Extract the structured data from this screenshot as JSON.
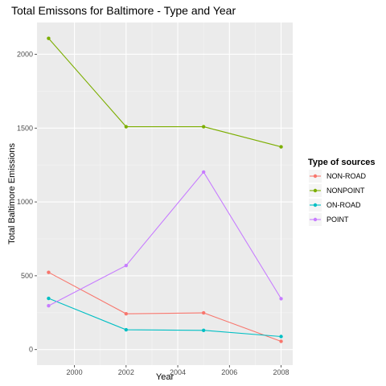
{
  "chart_data": {
    "type": "line",
    "title": "Total Emissons for Baltimore - Type and Year",
    "xlabel": "Year",
    "ylabel": "Total Baltimore Emissions",
    "x": [
      1999,
      2002,
      2005,
      2008
    ],
    "xlim": [
      1998.55,
      2008.45
    ],
    "ylim": [
      -105,
      2215
    ],
    "xticks": [
      2000,
      2002,
      2004,
      2006,
      2008
    ],
    "yticks": [
      0,
      500,
      1000,
      1500,
      2000
    ],
    "xtick_labels": [
      "2000",
      "2002",
      "2004",
      "2006",
      "2008"
    ],
    "ytick_labels": [
      "0",
      "500",
      "1000",
      "1500",
      "2000"
    ],
    "grid": true,
    "legend_title": "Type of sources",
    "legend_position": "right",
    "series": [
      {
        "name": "NON-ROAD",
        "color": "#F8766D",
        "values": [
          522.9,
          242.6,
          248.9,
          55.8
        ]
      },
      {
        "name": "NONPOINT",
        "color": "#7CAE00",
        "values": [
          2107.6,
          1509.5,
          1509.5,
          1373.2
        ]
      },
      {
        "name": "ON-ROAD",
        "color": "#00BFC4",
        "values": [
          346.8,
          134.3,
          130.4,
          88.3
        ]
      },
      {
        "name": "POINT",
        "color": "#C77CFF",
        "values": [
          296.8,
          569.3,
          1202.5,
          344.9
        ]
      }
    ]
  },
  "colors": {
    "panel_bg": "#EBEBEB",
    "grid_major": "#FFFFFF",
    "grid_minor": "#F5F5F5",
    "tick_text": "#4D4D4D"
  }
}
